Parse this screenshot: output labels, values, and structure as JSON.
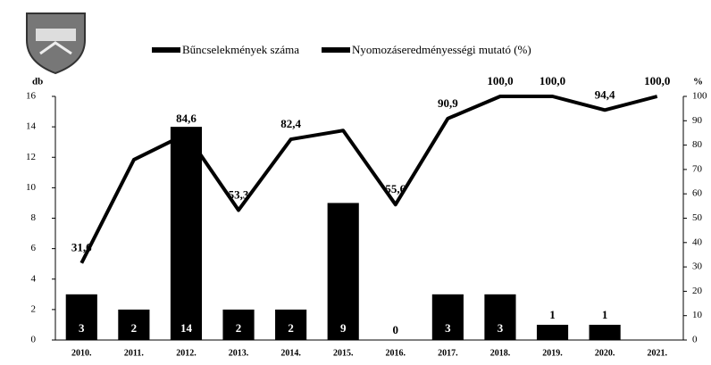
{
  "chart_data": {
    "type": "bar_line",
    "categories": [
      "2010.",
      "2011.",
      "2012.",
      "2013.",
      "2014.",
      "2015.",
      "2016.",
      "2017.",
      "2018.",
      "2019.",
      "2020.",
      "2021."
    ],
    "series": [
      {
        "name": "Bűncselekmények száma",
        "color": "#000000",
        "type": "bar",
        "values": [
          3,
          2,
          14,
          2,
          2,
          9,
          0,
          3,
          3,
          1,
          1,
          null
        ]
      },
      {
        "name": "Nyomozáseredményességi mutató (%)",
        "color": "#000000",
        "type": "line",
        "axis": "y2",
        "values": [
          31.6,
          74,
          84.6,
          53.3,
          82.4,
          86,
          55.6,
          90.9,
          100,
          100,
          94.4,
          100
        ],
        "value_labels": [
          "31,6",
          null,
          "84,6",
          "53,3",
          "82,4",
          null,
          "55,6",
          "90,9",
          "100,0",
          "100,0",
          "94,4",
          "100,0"
        ]
      }
    ],
    "ylabel": "db",
    "y2label": "%",
    "ylim": [
      0,
      16
    ],
    "yticks": [
      0,
      2,
      4,
      6,
      8,
      10,
      12,
      14,
      16
    ],
    "y2lim": [
      0,
      100
    ],
    "y2ticks": [
      0,
      10,
      20,
      30,
      40,
      50,
      60,
      70,
      80,
      90,
      100
    ]
  }
}
